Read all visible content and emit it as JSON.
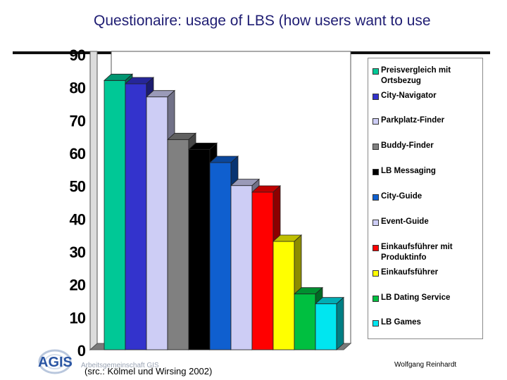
{
  "slide": {
    "title": "Questionaire: usage of LBS (how users want to use",
    "source": "(src.: Kölmel und Wirsing  2002)",
    "org": "Arbeitsgemeinschaft GIS",
    "author": "Wolfgang Reinhardt",
    "logo_text": "AGIS"
  },
  "chart_data": {
    "type": "bar",
    "title": "",
    "xlabel": "",
    "ylabel": "",
    "ylim": [
      0,
      90
    ],
    "yticks": [
      0,
      10,
      20,
      30,
      40,
      50,
      60,
      70,
      80,
      90
    ],
    "grid": false,
    "style": "3d",
    "legend_position": "right",
    "categories": [
      "Preisvergleich mit Ortsbezug",
      "City-Navigator",
      "Parkplatz-Finder",
      "Buddy-Finder",
      "LB Messaging",
      "City-Guide",
      "Event-Guide",
      "Einkaufsführer mit Produktinfo",
      "Einkaufsführer",
      "LB Dating Service",
      "LB Games"
    ],
    "values": [
      82,
      81,
      77,
      64,
      61,
      57,
      50,
      48,
      33,
      17,
      14
    ],
    "colors": [
      "#00c896",
      "#3333cc",
      "#cdcdf5",
      "#808080",
      "#000000",
      "#0f5fcf",
      "#cdcdf5",
      "#ff0000",
      "#ffff00",
      "#00bf40",
      "#00e6f0"
    ]
  }
}
